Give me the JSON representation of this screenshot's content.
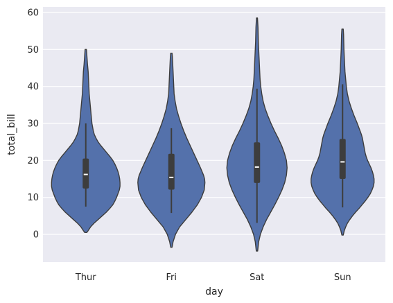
{
  "chart_data": {
    "type": "violin",
    "title": "",
    "xlabel": "day",
    "ylabel": "total_bill",
    "categories": [
      "Thur",
      "Fri",
      "Sat",
      "Sun"
    ],
    "ylim": [
      -7.5,
      61.5
    ],
    "yticks": [
      0,
      10,
      20,
      30,
      40,
      50,
      60
    ],
    "grid": true,
    "background_color": "#eaeaf2",
    "grid_color": "#ffffff",
    "violin_color": "#5471ab",
    "edge_color": "#3d3d3d",
    "violins": [
      {
        "category": "Thur",
        "extent": [
          0.5,
          50
        ],
        "quartiles": [
          12.4,
          16.2,
          20.5
        ],
        "whiskers": [
          7.5,
          30
        ],
        "profile": [
          [
            0.5,
            0.03
          ],
          [
            1,
            0.07
          ],
          [
            2,
            0.14
          ],
          [
            3,
            0.24
          ],
          [
            4,
            0.36
          ],
          [
            5,
            0.48
          ],
          [
            6,
            0.6
          ],
          [
            7,
            0.7
          ],
          [
            8,
            0.79
          ],
          [
            9,
            0.85
          ],
          [
            10,
            0.9
          ],
          [
            11,
            0.94
          ],
          [
            12,
            0.98
          ],
          [
            13,
            1.0
          ],
          [
            14,
            1.0
          ],
          [
            15,
            0.99
          ],
          [
            16,
            0.97
          ],
          [
            17,
            0.94
          ],
          [
            18,
            0.9
          ],
          [
            19,
            0.85
          ],
          [
            20,
            0.79
          ],
          [
            21,
            0.71
          ],
          [
            22,
            0.62
          ],
          [
            23,
            0.53
          ],
          [
            24,
            0.44
          ],
          [
            25,
            0.36
          ],
          [
            26,
            0.3
          ],
          [
            27,
            0.25
          ],
          [
            28,
            0.22
          ],
          [
            29,
            0.2
          ],
          [
            30,
            0.18
          ],
          [
            32,
            0.16
          ],
          [
            34,
            0.14
          ],
          [
            36,
            0.12
          ],
          [
            38,
            0.1
          ],
          [
            40,
            0.09
          ],
          [
            42,
            0.08
          ],
          [
            44,
            0.07
          ],
          [
            46,
            0.05
          ],
          [
            48,
            0.035
          ],
          [
            50,
            0.02
          ]
        ]
      },
      {
        "category": "Fri",
        "extent": [
          -3.5,
          49
        ],
        "quartiles": [
          12.1,
          15.4,
          21.8
        ],
        "whiskers": [
          5.8,
          28.7
        ],
        "profile": [
          [
            -3.5,
            0.02
          ],
          [
            -2,
            0.05
          ],
          [
            0,
            0.12
          ],
          [
            2,
            0.24
          ],
          [
            4,
            0.42
          ],
          [
            6,
            0.6
          ],
          [
            8,
            0.76
          ],
          [
            10,
            0.88
          ],
          [
            12,
            0.96
          ],
          [
            14,
            0.98
          ],
          [
            15,
            0.97
          ],
          [
            16,
            0.94
          ],
          [
            18,
            0.85
          ],
          [
            20,
            0.75
          ],
          [
            22,
            0.65
          ],
          [
            24,
            0.55
          ],
          [
            26,
            0.45
          ],
          [
            28,
            0.36
          ],
          [
            30,
            0.28
          ],
          [
            32,
            0.21
          ],
          [
            34,
            0.15
          ],
          [
            36,
            0.11
          ],
          [
            38,
            0.08
          ],
          [
            40,
            0.07
          ],
          [
            42,
            0.06
          ],
          [
            44,
            0.05
          ],
          [
            46,
            0.04
          ],
          [
            48,
            0.03
          ],
          [
            49,
            0.02
          ]
        ]
      },
      {
        "category": "Sat",
        "extent": [
          -4.5,
          58.5
        ],
        "quartiles": [
          13.9,
          18.2,
          24.9
        ],
        "whiskers": [
          3.1,
          39.4
        ],
        "profile": [
          [
            -4.5,
            0.02
          ],
          [
            -2,
            0.05
          ],
          [
            0,
            0.1
          ],
          [
            2,
            0.18
          ],
          [
            4,
            0.28
          ],
          [
            6,
            0.4
          ],
          [
            8,
            0.52
          ],
          [
            10,
            0.63
          ],
          [
            12,
            0.73
          ],
          [
            14,
            0.81
          ],
          [
            16,
            0.86
          ],
          [
            18,
            0.88
          ],
          [
            20,
            0.86
          ],
          [
            22,
            0.8
          ],
          [
            24,
            0.72
          ],
          [
            26,
            0.62
          ],
          [
            28,
            0.51
          ],
          [
            30,
            0.41
          ],
          [
            32,
            0.32
          ],
          [
            34,
            0.24
          ],
          [
            36,
            0.18
          ],
          [
            38,
            0.14
          ],
          [
            40,
            0.11
          ],
          [
            42,
            0.09
          ],
          [
            44,
            0.08
          ],
          [
            46,
            0.07
          ],
          [
            48,
            0.06
          ],
          [
            50,
            0.05
          ],
          [
            52,
            0.04
          ],
          [
            54,
            0.035
          ],
          [
            56,
            0.03
          ],
          [
            58.5,
            0.015
          ]
        ]
      },
      {
        "category": "Sun",
        "extent": [
          -0.2,
          55.5
        ],
        "quartiles": [
          15.0,
          19.6,
          25.8
        ],
        "whiskers": [
          7.3,
          40.6
        ],
        "profile": [
          [
            -0.2,
            0.02
          ],
          [
            1,
            0.05
          ],
          [
            2,
            0.09
          ],
          [
            3,
            0.14
          ],
          [
            4,
            0.21
          ],
          [
            5,
            0.29
          ],
          [
            6,
            0.38
          ],
          [
            7,
            0.48
          ],
          [
            8,
            0.57
          ],
          [
            9,
            0.66
          ],
          [
            10,
            0.74
          ],
          [
            11,
            0.81
          ],
          [
            12,
            0.86
          ],
          [
            13,
            0.9
          ],
          [
            14,
            0.92
          ],
          [
            15,
            0.92
          ],
          [
            16,
            0.9
          ],
          [
            17,
            0.87
          ],
          [
            18,
            0.83
          ],
          [
            19,
            0.78
          ],
          [
            20,
            0.73
          ],
          [
            21,
            0.69
          ],
          [
            22,
            0.66
          ],
          [
            23,
            0.64
          ],
          [
            24,
            0.62
          ],
          [
            25,
            0.6
          ],
          [
            26,
            0.58
          ],
          [
            27,
            0.55
          ],
          [
            28,
            0.51
          ],
          [
            29,
            0.47
          ],
          [
            30,
            0.43
          ],
          [
            32,
            0.34
          ],
          [
            34,
            0.26
          ],
          [
            36,
            0.19
          ],
          [
            38,
            0.14
          ],
          [
            40,
            0.11
          ],
          [
            42,
            0.09
          ],
          [
            44,
            0.07
          ],
          [
            46,
            0.06
          ],
          [
            48,
            0.05
          ],
          [
            50,
            0.04
          ],
          [
            52,
            0.035
          ],
          [
            54,
            0.03
          ],
          [
            55.5,
            0.02
          ]
        ]
      }
    ]
  }
}
